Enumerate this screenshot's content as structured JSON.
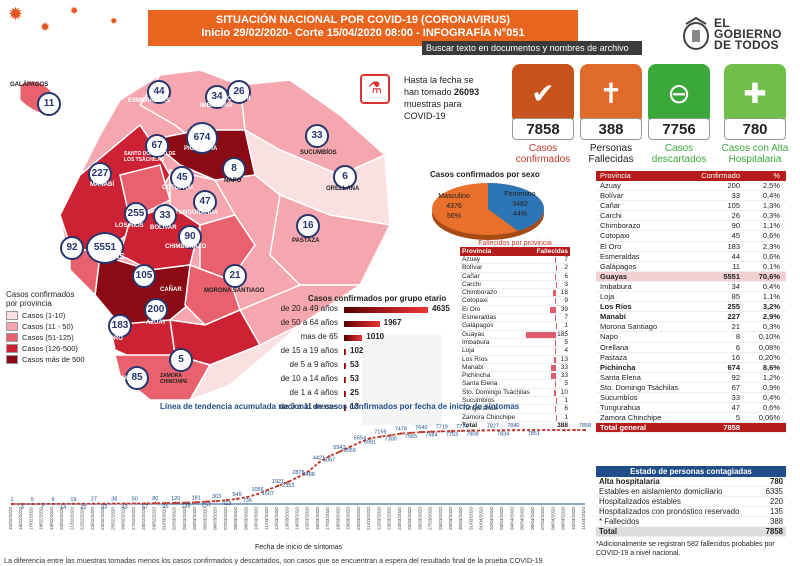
{
  "header": {
    "line1": "SITUACIÓN NACIONAL POR  COVID-19 (CORONAVIRUS)",
    "line2": "Inicio 29/02/2020- Corte 15/04/2020 08:00  - INFOGRAFÍA N°051"
  },
  "toolbar_tip": "Buscar texto en documentos y nombres de archivo",
  "logo": {
    "line1": "EL",
    "line2": "GOBIERNO",
    "line3": "DE TODOS"
  },
  "map": {
    "galapagos_label": "GALÁPAGOS",
    "badges": [
      {
        "n": "11",
        "name": "galapagos"
      },
      {
        "n": "44",
        "name": "esmeraldas"
      },
      {
        "n": "34",
        "name": "imbabura"
      },
      {
        "n": "26",
        "name": "carchi"
      },
      {
        "n": "674",
        "name": "pichincha"
      },
      {
        "n": "33",
        "name": "sucumbios"
      },
      {
        "n": "67",
        "name": "santo-domingo"
      },
      {
        "n": "8",
        "name": "napo"
      },
      {
        "n": "227",
        "name": "manabi"
      },
      {
        "n": "45",
        "name": "cotopaxi"
      },
      {
        "n": "6",
        "name": "orellana"
      },
      {
        "n": "47",
        "name": "tungurahua"
      },
      {
        "n": "255",
        "name": "los-rios"
      },
      {
        "n": "33",
        "name": "bolivar"
      },
      {
        "n": "16",
        "name": "pastaza"
      },
      {
        "n": "90",
        "name": "chimborazo"
      },
      {
        "n": "92",
        "name": "santa-elena"
      },
      {
        "n": "5551",
        "name": "guayas"
      },
      {
        "n": "105",
        "name": "canar"
      },
      {
        "n": "21",
        "name": "morona-santiago"
      },
      {
        "n": "200",
        "name": "azuay"
      },
      {
        "n": "183",
        "name": "el-oro"
      },
      {
        "n": "85",
        "name": "loja"
      },
      {
        "n": "5",
        "name": "zamora-chinchipe"
      }
    ],
    "labels": [
      "ESMERALDAS",
      "CARCHI",
      "IMBABURA",
      "PICHINCHA",
      "SANTO DOMINGO DE LOS TSÁCHILAS",
      "SUCUMBÍOS",
      "MANABÍ",
      "NAPO",
      "COTOPAXI",
      "ORELLANA",
      "TUNGURAHUA",
      "LOS RÍOS",
      "BOLÍVAR",
      "PASTAZA",
      "CHIMBORAZO",
      "SANTA ELENA",
      "GUAYAS",
      "CAÑAR",
      "MORONA SANTIAGO",
      "AZUAY",
      "EL ORO",
      "LOJA",
      "ZAMORA CHINCHIPE"
    ],
    "legend": {
      "title": "Casos confirmados\npor provincia",
      "items": [
        {
          "label": "Casos (1-10)",
          "color": "#fbe0e2"
        },
        {
          "label": "Casos (11 - 50)",
          "color": "#f5a6ae"
        },
        {
          "label": "Casos (51-125)",
          "color": "#e8616d"
        },
        {
          "label": "Casos (126-500)",
          "color": "#cc2233"
        },
        {
          "label": "Casos más de 500",
          "color": "#8c0a14"
        }
      ]
    }
  },
  "tests": {
    "line1": "Hasta la fecha se",
    "line2a": "han tomado ",
    "value": "26093",
    "line3": "muestras  para",
    "line4": "COVID-19"
  },
  "stats": [
    {
      "value": "7858",
      "label1": "Casos",
      "label2": "confirmados",
      "color": "#c9531d",
      "label_color": "#c0392b"
    },
    {
      "value": "388",
      "label1": "Personas",
      "label2": "Fallecidas",
      "color": "#e06a2a",
      "label_color": "#222"
    },
    {
      "value": "7756",
      "label1": "Casos",
      "label2": "descartados",
      "color": "#3aa83a",
      "label_color": "#3aa83a"
    },
    {
      "value": "780",
      "label1": "Casos con Alta",
      "label2": "Hospitalaria",
      "color": "#6fbf4a",
      "label_color": "#3aa83a"
    }
  ],
  "pie": {
    "title": "Casos confirmados por sexo",
    "slices": [
      {
        "label": "Masculino",
        "value": 4376,
        "pct": "56%",
        "color": "#e8702a"
      },
      {
        "label": "Femenino",
        "value": 3482,
        "pct": "44%",
        "color": "#2e75b6"
      }
    ]
  },
  "fallecidos": {
    "title": "Fallecidos por provincia",
    "h1": "Provincia",
    "h2": "Fallecidas",
    "rows": [
      [
        "Azuay",
        "7"
      ],
      [
        "Bolívar",
        "2"
      ],
      [
        "Cañar",
        "6"
      ],
      [
        "Carchi",
        "3"
      ],
      [
        "Chimborazo",
        "18"
      ],
      [
        "Cotopaxi",
        "9"
      ],
      [
        "El Oro",
        "39"
      ],
      [
        "Esmeraldas",
        "7"
      ],
      [
        "Galápagos",
        "1"
      ],
      [
        "Guayas",
        "185"
      ],
      [
        "Imbabura",
        "5"
      ],
      [
        "Loja",
        "4"
      ],
      [
        "Los Ríos",
        "13"
      ],
      [
        "Manabí",
        "33"
      ],
      [
        "Pichincha",
        "33"
      ],
      [
        "Santa Elena",
        "5"
      ],
      [
        "Sto. Domingo Tsáchilas",
        "10"
      ],
      [
        "Sucumbíos",
        "1"
      ],
      [
        "Tungurahua",
        "6"
      ],
      [
        "Zamora Chinchipe",
        "1"
      ]
    ],
    "total_label": "Total",
    "total": "388"
  },
  "provincias": {
    "h1": "Provincia",
    "h2": "Confirmado",
    "h3": "%",
    "rows": [
      [
        "Azuay",
        "200",
        "2,5%"
      ],
      [
        "Bolívar",
        "33",
        "0,4%"
      ],
      [
        "Cañar",
        "105",
        "1,3%"
      ],
      [
        "Carchi",
        "26",
        "0,3%"
      ],
      [
        "Chimborazo",
        "90",
        "1,1%"
      ],
      [
        "Cotopaxi",
        "45",
        "0,6%"
      ],
      [
        "El Oro",
        "183",
        "2,3%"
      ],
      [
        "Esmeraldas",
        "44",
        "0,6%"
      ],
      [
        "Galápagos",
        "11",
        "0,1%"
      ],
      [
        "Guayas",
        "5551",
        "70,6%"
      ],
      [
        "Imbabura",
        "34",
        "0,4%"
      ],
      [
        "Loja",
        "85",
        "1,1%"
      ],
      [
        "Los Ríos",
        "255",
        "3,2%"
      ],
      [
        "Manabí",
        "227",
        "2,9%"
      ],
      [
        "Morona Santiago",
        "21",
        "0,3%"
      ],
      [
        "Napo",
        "8",
        "0,10%"
      ],
      [
        "Orellana",
        "6",
        "0,08%"
      ],
      [
        "Pastaza",
        "16",
        "0,20%"
      ],
      [
        "Pichincha",
        "674",
        "8,6%"
      ],
      [
        "Santa Elena",
        "92",
        "1,2%"
      ],
      [
        "Sto. Domingo Tsáchilas",
        "67",
        "0,9%"
      ],
      [
        "Sucumbíos",
        "33",
        "0,4%"
      ],
      [
        "Tungurahua",
        "47",
        "0,6%"
      ],
      [
        "Zamora Chinchipe",
        "5",
        "0,06%"
      ]
    ],
    "total_label": "Total general",
    "total": "7858"
  },
  "estado": {
    "title": "Estado de personas contagiadas",
    "rows": [
      [
        "Alta hospitalaria",
        "780"
      ],
      [
        "Estables en aislamiento domiciliario",
        "6335"
      ],
      [
        "Hospitalizados estables",
        "220"
      ],
      [
        "Hospitalizados con pronóstico reservado",
        "135"
      ],
      [
        "* Fallecidos",
        "388"
      ]
    ],
    "total_label": "Total",
    "total": "7858"
  },
  "note": "*Adicionalmente se registran 582 fallecidos probables por COVID-19 a nivel nacional.",
  "age": {
    "title": "Casos confirmados por grupo etario",
    "rows": [
      [
        "de 20 a 49 años",
        "4635"
      ],
      [
        "de 50 a 64 años",
        "1967"
      ],
      [
        "mas de 65",
        "1010"
      ],
      [
        "de 15 a 19 años",
        "102"
      ],
      [
        "de 5 a 9 años",
        "53"
      ],
      [
        "de 10 a 14 años",
        "53"
      ],
      [
        "de 1 a 4 años",
        "25"
      ],
      [
        "de 0 a 11 meses",
        "13"
      ]
    ]
  },
  "chart_data": {
    "type": "line",
    "title": "Línea de tendencia acumulada nacional de casos confirmados por fecha de inicio de síntomas",
    "xlabel": "Fecha de inicio de síntomas",
    "x": [
      "15/02/2020",
      "16/02/2020",
      "17/02/2020",
      "18/02/2020",
      "19/02/2020",
      "20/02/2020",
      "21/02/2020",
      "22/02/2020",
      "23/02/2020",
      "24/02/2020",
      "25/02/2020",
      "26/02/2020",
      "27/02/2020",
      "28/02/2020",
      "29/02/2020",
      "01/03/2020",
      "02/03/2020",
      "03/03/2020",
      "04/03/2020",
      "05/03/2020",
      "06/03/2020",
      "07/03/2020",
      "08/03/2020",
      "09/03/2020",
      "10/03/2020",
      "11/03/2020",
      "12/03/2020",
      "13/03/2020",
      "14/03/2020",
      "15/03/2020",
      "16/03/2020",
      "17/03/2020",
      "18/03/2020",
      "19/03/2020",
      "20/03/2020",
      "21/03/2020",
      "22/03/2020",
      "23/03/2020",
      "24/03/2020",
      "25/03/2020",
      "26/03/2020",
      "27/03/2020",
      "28/03/2020",
      "29/03/2020",
      "30/03/2020",
      "31/03/2020",
      "01/04/2020",
      "02/04/2020",
      "03/04/2020",
      "04/04/2020",
      "05/04/2020",
      "06/04/2020",
      "07/04/2020",
      "08/04/2020",
      "09/04/2020",
      "10/04/2020",
      "11/04/2020"
    ],
    "values": [
      1,
      3,
      5,
      7,
      9,
      14,
      19,
      22,
      27,
      33,
      38,
      43,
      50,
      57,
      80,
      95,
      120,
      138,
      181,
      257,
      303,
      413,
      549,
      736,
      1056,
      1507,
      1921,
      2353,
      2878,
      3488,
      4421,
      5067,
      5543,
      6059,
      6554,
      6981,
      7159,
      7300,
      7478,
      7565,
      7640,
      7684,
      7719,
      7753,
      7776,
      7808,
      7808,
      7827,
      7834,
      7840,
      7840,
      7851,
      7851,
      7851,
      7851,
      7858,
      7858
    ],
    "labels": [
      [
        "1",
        0
      ],
      [
        "3",
        1
      ],
      [
        "5",
        2
      ],
      [
        "7",
        3
      ],
      [
        "9",
        4
      ],
      [
        "14",
        5
      ],
      [
        "19",
        6
      ],
      [
        "22",
        7
      ],
      [
        "27",
        8
      ],
      [
        "33",
        9
      ],
      [
        "38",
        10
      ],
      [
        "43",
        11
      ],
      [
        "50",
        12
      ],
      [
        "57",
        13
      ],
      [
        "80",
        14
      ],
      [
        "95",
        15
      ],
      [
        "120",
        16
      ],
      [
        "138",
        17
      ],
      [
        "181",
        18
      ],
      [
        "257",
        19
      ],
      [
        "303",
        20
      ],
      [
        "413",
        21
      ],
      [
        "549",
        22
      ],
      [
        "736",
        23
      ],
      [
        "1056",
        24
      ],
      [
        "1507",
        25
      ],
      [
        "1921",
        26
      ],
      [
        "2353",
        27
      ],
      [
        "2878",
        28
      ],
      [
        "3488",
        29
      ],
      [
        "4421",
        30
      ],
      [
        "5067",
        31
      ],
      [
        "5543",
        32
      ],
      [
        "6059",
        33
      ],
      [
        "6554",
        34
      ],
      [
        "6981",
        35
      ],
      [
        "7159",
        36
      ],
      [
        "7300",
        37
      ],
      [
        "7478",
        38
      ],
      [
        "7565",
        39
      ],
      [
        "7640",
        40
      ],
      [
        "7684",
        41
      ],
      [
        "7719",
        42
      ],
      [
        "7753",
        43
      ],
      [
        "7776",
        44
      ],
      [
        "7808",
        45
      ],
      [
        "7827",
        47
      ],
      [
        "7834",
        48
      ],
      [
        "7840",
        49
      ],
      [
        "7851",
        51
      ],
      [
        "7858",
        56
      ]
    ],
    "ylim": [
      0,
      8500
    ]
  },
  "footer": "La diferencia entre las muestras tomadas menos los casos confirmados y descartados, son casos que se encuentran a espera del resultado final de la prueba COVID-19"
}
